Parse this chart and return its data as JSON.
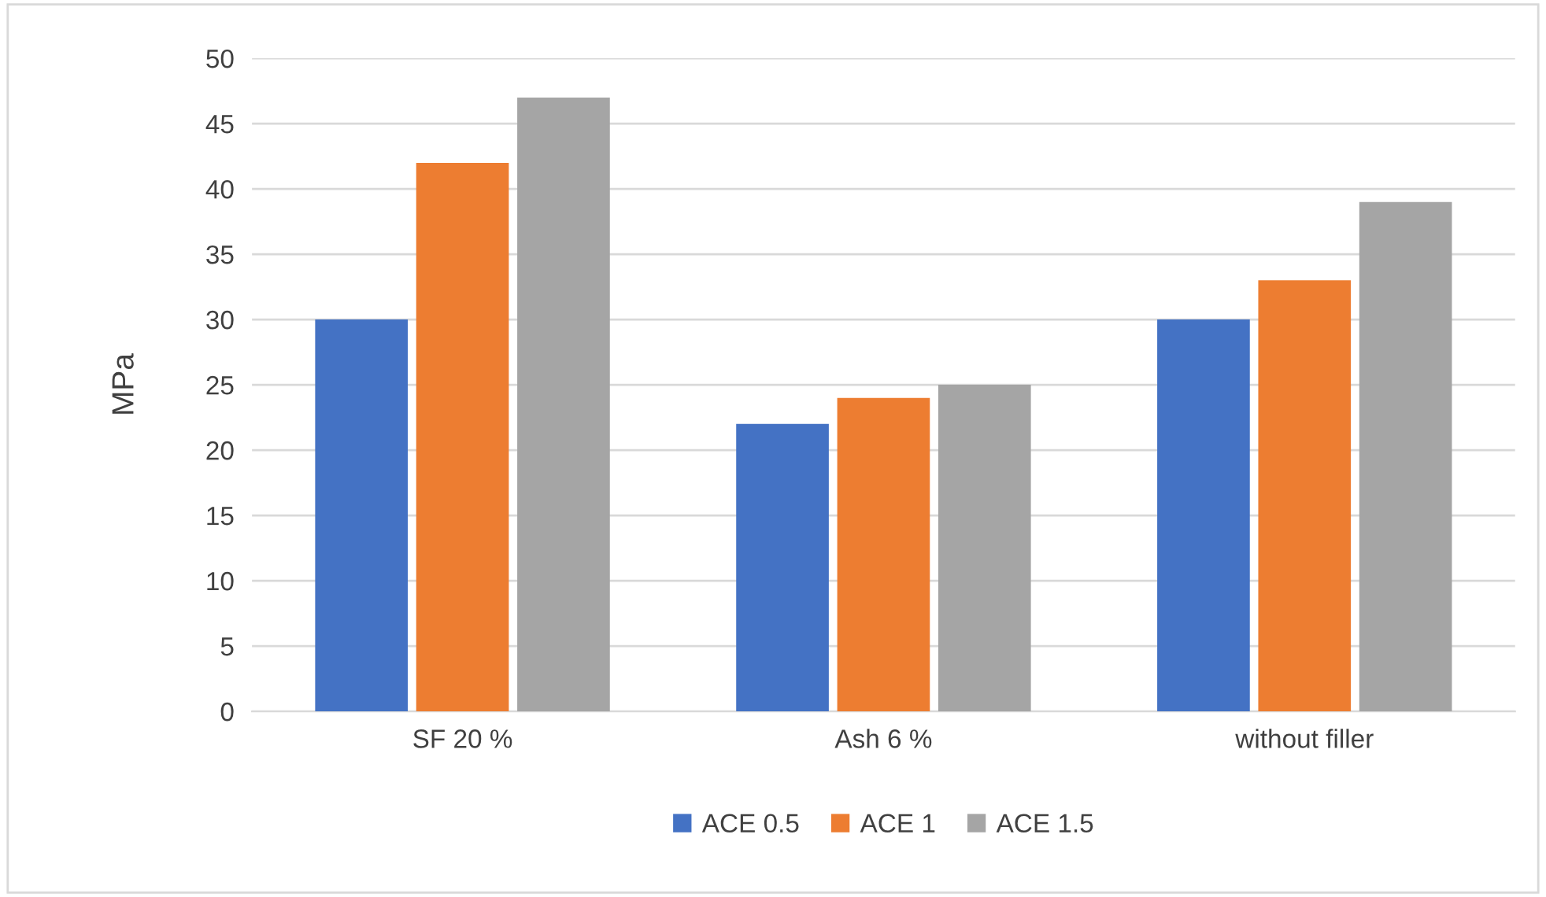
{
  "chart_data": {
    "type": "bar",
    "ylabel": "MPa",
    "categories": [
      "SF 20 %",
      "Ash 6 %",
      "without filler"
    ],
    "series": [
      {
        "name": "ACE 0.5",
        "color": "#4472c4",
        "values": [
          30,
          22,
          30
        ]
      },
      {
        "name": "ACE 1",
        "color": "#ed7d31",
        "values": [
          42,
          24,
          33
        ]
      },
      {
        "name": "ACE 1.5",
        "color": "#a5a5a5",
        "values": [
          47,
          25,
          39
        ]
      }
    ],
    "ylim": [
      0,
      50
    ],
    "yticks": [
      0,
      5,
      10,
      15,
      20,
      25,
      30,
      35,
      40,
      45,
      50
    ],
    "grid": "y",
    "legend": "bottom"
  }
}
